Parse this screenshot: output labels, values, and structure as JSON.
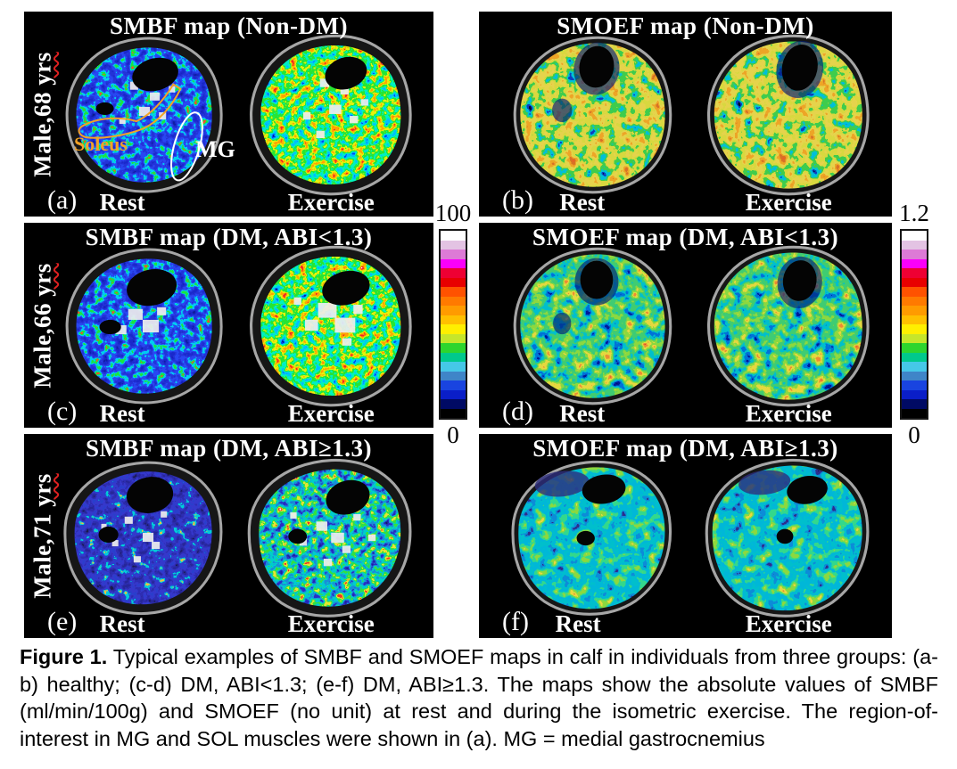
{
  "figure": {
    "panels": [
      {
        "letter": "(a)",
        "title": "SMBF map (Non-DM)",
        "subject": "Male,68 ",
        "subject_unit": "yrs",
        "rest_label": "Rest",
        "exercise_label": "Exercise",
        "roi_labels": {
          "soleus": "Soleus",
          "mg": "MG"
        }
      },
      {
        "letter": "(b)",
        "title": "SMOEF map (Non-DM)",
        "rest_label": "Rest",
        "exercise_label": "Exercise"
      },
      {
        "letter": "(c)",
        "title": "SMBF map (DM, ABI<1.3)",
        "subject": "Male,66 ",
        "subject_unit": "yrs",
        "rest_label": "Rest",
        "exercise_label": "Exercise"
      },
      {
        "letter": "(d)",
        "title": "SMOEF map (DM, ABI<1.3)",
        "rest_label": "Rest",
        "exercise_label": "Exercise"
      },
      {
        "letter": "(e)",
        "title": "SMBF map (DM, ABI≥1.3)",
        "subject": "Male,71 ",
        "subject_unit": "yrs",
        "rest_label": "Rest",
        "exercise_label": "Exercise"
      },
      {
        "letter": "(f)",
        "title": "SMOEF map (DM, ABI≥1.3)",
        "rest_label": "Rest",
        "exercise_label": "Exercise"
      }
    ],
    "colorbars": {
      "smbf": {
        "top_label": "100",
        "bottom_label": "0"
      },
      "smoef": {
        "top_label": "1.2",
        "bottom_label": "0"
      },
      "band_colors_top_to_bottom": [
        "#ffffff",
        "#e3c3e3",
        "#dd7ad6",
        "#fa00fa",
        "#ee0033",
        "#e80000",
        "#ff5200",
        "#ff7a00",
        "#ff9b00",
        "#ffc000",
        "#ffef00",
        "#c6e62a",
        "#2ed52e",
        "#00c98c",
        "#45c8e8",
        "#3f85c8",
        "#1944e0",
        "#0a1ec8",
        "#000a64",
        "#000000"
      ]
    },
    "annotation_colors": {
      "soleus_roi": "#f2a227",
      "mg_roi": "#ffffff",
      "subject_underline": "#dd2020"
    },
    "caption": {
      "label": "Figure 1.",
      "text": "Typical examples of SMBF and SMOEF maps in calf in individuals from three groups: (a-b) healthy; (c-d) DM, ABI<1.3; (e-f) DM, ABI≥1.3. The maps show the absolute values of SMBF (ml/min/100g) and SMOEF (no unit) at rest and during the isometric exercise. The region-of-interest in MG and SOL muscles were shown in (a). MG = medial gastrocnemius"
    }
  }
}
